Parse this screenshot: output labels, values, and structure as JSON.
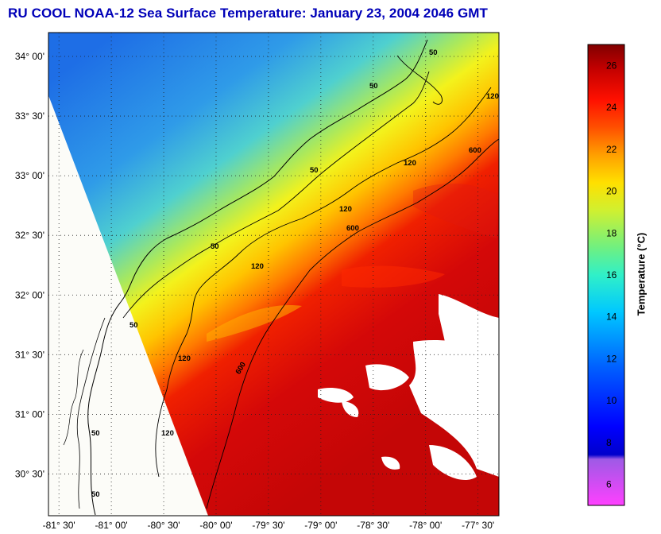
{
  "title": "RU COOL  NOAA-12  Sea Surface Temperature:  January 23, 2004 2046 GMT",
  "map": {
    "lat_ticks": [
      "34° 00'",
      "33° 30'",
      "33° 00'",
      "32° 30'",
      "32° 00'",
      "31° 30'",
      "31° 00'",
      "30° 30'"
    ],
    "lon_ticks": [
      "-81° 30'",
      "-81° 00'",
      "-80° 30'",
      "-80° 00'",
      "-79° 30'",
      "-79° 00'",
      "-78° 30'",
      "-78° 00'",
      "-77° 30'"
    ],
    "lat_range": [
      30.15,
      34.2
    ],
    "lon_range": [
      -81.6,
      -77.3
    ],
    "grid": "dotted",
    "contour_labels": [
      "50",
      "120",
      "600"
    ],
    "land_color": "#fcfcf8",
    "cloud_color": "#ffffff"
  },
  "colorbar": {
    "title": "Temperature (°C)",
    "range": [
      5,
      27
    ],
    "ticks": [
      "6",
      "8",
      "10",
      "12",
      "14",
      "16",
      "18",
      "20",
      "22",
      "24",
      "26"
    ],
    "colormap": "jet"
  }
}
